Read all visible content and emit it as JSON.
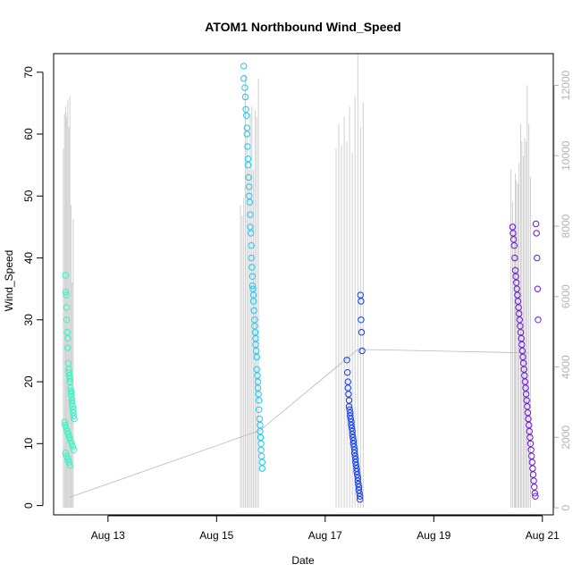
{
  "chart_data": {
    "type": "scatter",
    "title": "ATOM1 Northbound Wind_Speed",
    "xlabel": "Date",
    "ylabel": "Wind_Speed",
    "x_unit": "day of August 2016 (fractional)",
    "xlim": [
      12.0,
      21.2
    ],
    "ylim": [
      -1.5,
      73
    ],
    "y2lim": [
      -200,
      12900
    ],
    "x_ticks": [
      {
        "value": 13,
        "label": "Aug 13"
      },
      {
        "value": 15,
        "label": "Aug 15"
      },
      {
        "value": 17,
        "label": "Aug 17"
      },
      {
        "value": 19,
        "label": "Aug 19"
      },
      {
        "value": 21,
        "label": "Aug 21"
      }
    ],
    "y_ticks": [
      0,
      10,
      20,
      30,
      40,
      50,
      60,
      70
    ],
    "y2_ticks": [
      0,
      2000,
      4000,
      6000,
      8000,
      10000,
      12000
    ],
    "grid": false,
    "legend": "none",
    "colors": {
      "points": [
        "#2bf8c4",
        "#18c9f5",
        "#0e3cf5",
        "#6a14e0"
      ],
      "vertical_bars": "#cfcfcf",
      "trend_line": "#b8b8b8",
      "axis": "#000000",
      "right_axis": "#b3b3b3"
    },
    "series": [
      {
        "x": [
          12.22,
          12.22,
          12.23,
          12.24,
          12.24,
          12.25,
          12.26,
          12.26,
          12.27,
          12.28,
          12.28,
          12.29,
          12.3,
          12.3,
          12.31,
          12.32,
          12.32,
          12.33,
          12.34,
          12.34,
          12.35,
          12.36,
          12.36,
          12.37,
          12.38,
          12.2,
          12.21,
          12.23,
          12.25,
          12.27,
          12.29,
          12.31,
          12.33,
          12.35,
          12.37,
          12.22,
          12.24,
          12.26,
          12.28,
          12.3
        ],
        "y": [
          37.2,
          34.5,
          34,
          32,
          30,
          28,
          27,
          25.5,
          23,
          22,
          21.5,
          21,
          20.5,
          20,
          19,
          18.5,
          18,
          17.5,
          17,
          16.5,
          16,
          15.5,
          15,
          14.5,
          14,
          13.5,
          13,
          12.5,
          12,
          11.5,
          11,
          10.5,
          10,
          9.5,
          9,
          8.5,
          8,
          7.5,
          7,
          6.5
        ]
      },
      {
        "x": [
          15.5,
          15.5,
          15.52,
          15.53,
          15.54,
          15.55,
          15.56,
          15.56,
          15.57,
          15.58,
          15.58,
          15.59,
          15.6,
          15.6,
          15.61,
          15.62,
          15.62,
          15.63,
          15.64,
          15.64,
          15.65,
          15.66,
          15.66,
          15.67,
          15.68,
          15.68,
          15.69,
          15.7,
          15.7,
          15.71,
          15.72,
          15.72,
          15.73,
          15.74,
          15.74,
          15.75,
          15.76,
          15.76,
          15.77,
          15.78,
          15.78,
          15.79,
          15.8,
          15.8,
          15.81,
          15.82,
          15.82,
          15.83,
          15.84,
          15.84
        ],
        "y": [
          71,
          69,
          67.5,
          66,
          64,
          63,
          61,
          60,
          58,
          56,
          55,
          53,
          51.5,
          50,
          49,
          47,
          45,
          44,
          42,
          40,
          38.5,
          37,
          35.5,
          35,
          34,
          33,
          31.5,
          30,
          29,
          28,
          27,
          26,
          25,
          24,
          22,
          21,
          20,
          19,
          18,
          17,
          15.5,
          14,
          13,
          12,
          11,
          10,
          9,
          8,
          7,
          6
        ]
      },
      {
        "x": [
          17.4,
          17.41,
          17.42,
          17.42,
          17.43,
          17.44,
          17.44,
          17.45,
          17.46,
          17.46,
          17.47,
          17.48,
          17.48,
          17.49,
          17.5,
          17.5,
          17.51,
          17.52,
          17.52,
          17.53,
          17.54,
          17.54,
          17.55,
          17.56,
          17.56,
          17.57,
          17.58,
          17.58,
          17.59,
          17.6,
          17.6,
          17.61,
          17.62,
          17.62,
          17.63,
          17.64,
          17.64,
          17.65,
          17.66,
          17.66,
          17.67,
          17.68
        ],
        "y": [
          23.5,
          21.5,
          20,
          19,
          18,
          17,
          16,
          15.5,
          15,
          14.5,
          14,
          13.5,
          13,
          12.5,
          12,
          11.5,
          11,
          10.5,
          10,
          9.5,
          9,
          8.5,
          8,
          7.5,
          7,
          6.5,
          6,
          5.5,
          5,
          4.5,
          4,
          3.5,
          3,
          2.5,
          2,
          1.5,
          1,
          34,
          33,
          30,
          28,
          25
        ]
      },
      {
        "x": [
          20.45,
          20.46,
          20.47,
          20.48,
          20.49,
          20.5,
          20.51,
          20.52,
          20.53,
          20.54,
          20.55,
          20.56,
          20.57,
          20.58,
          20.59,
          20.6,
          20.61,
          20.62,
          20.63,
          20.64,
          20.65,
          20.66,
          20.67,
          20.68,
          20.69,
          20.7,
          20.71,
          20.72,
          20.73,
          20.74,
          20.75,
          20.76,
          20.77,
          20.78,
          20.79,
          20.8,
          20.81,
          20.82,
          20.83,
          20.84,
          20.85,
          20.86,
          20.87,
          20.88,
          20.89,
          20.9,
          20.91,
          20.92
        ],
        "y": [
          45,
          44,
          43,
          42,
          40,
          38,
          37,
          36,
          35,
          34,
          33,
          32,
          31,
          30,
          29,
          28,
          27,
          26,
          25,
          24,
          23,
          22,
          21,
          20,
          19,
          18,
          17,
          16,
          15,
          14,
          13,
          12,
          11,
          10,
          9,
          8,
          7,
          6,
          5,
          4,
          3,
          2,
          1.5,
          45.5,
          44,
          40,
          35,
          30
        ]
      }
    ],
    "vertical_bars": {
      "right_axis_values": true,
      "x": [
        12.18,
        12.2,
        12.22,
        12.24,
        12.26,
        12.28,
        12.3,
        12.32,
        12.34,
        12.36,
        15.44,
        15.47,
        15.5,
        15.53,
        15.56,
        15.59,
        15.62,
        15.65,
        15.68,
        15.71,
        15.74,
        15.77,
        17.2,
        17.25,
        17.3,
        17.35,
        17.4,
        17.45,
        17.5,
        17.55,
        17.6,
        17.65,
        17.7,
        20.42,
        20.45,
        20.48,
        20.5,
        20.52,
        20.55,
        20.57,
        20.6,
        20.62,
        20.65,
        20.67,
        20.7,
        20.72,
        20.75,
        20.78
      ],
      "y": [
        10200,
        11200,
        11400,
        11100,
        11600,
        10800,
        11700,
        8600,
        6400,
        8200,
        8600,
        8300,
        8800,
        12300,
        10600,
        9600,
        11200,
        11400,
        9600,
        11300,
        11100,
        12200,
        10200,
        10900,
        10300,
        11100,
        10400,
        11400,
        10100,
        11700,
        12900,
        10800,
        11500,
        9600,
        8700,
        8100,
        9500,
        9300,
        9200,
        9800,
        10900,
        10400,
        10000,
        10500,
        10400,
        12000,
        10900,
        9400
      ]
    },
    "trend_line": {
      "right_axis_values": true,
      "x": [
        12.3,
        15.8,
        17.6,
        20.75
      ],
      "y": [
        300,
        2200,
        4500,
        4400
      ]
    }
  }
}
